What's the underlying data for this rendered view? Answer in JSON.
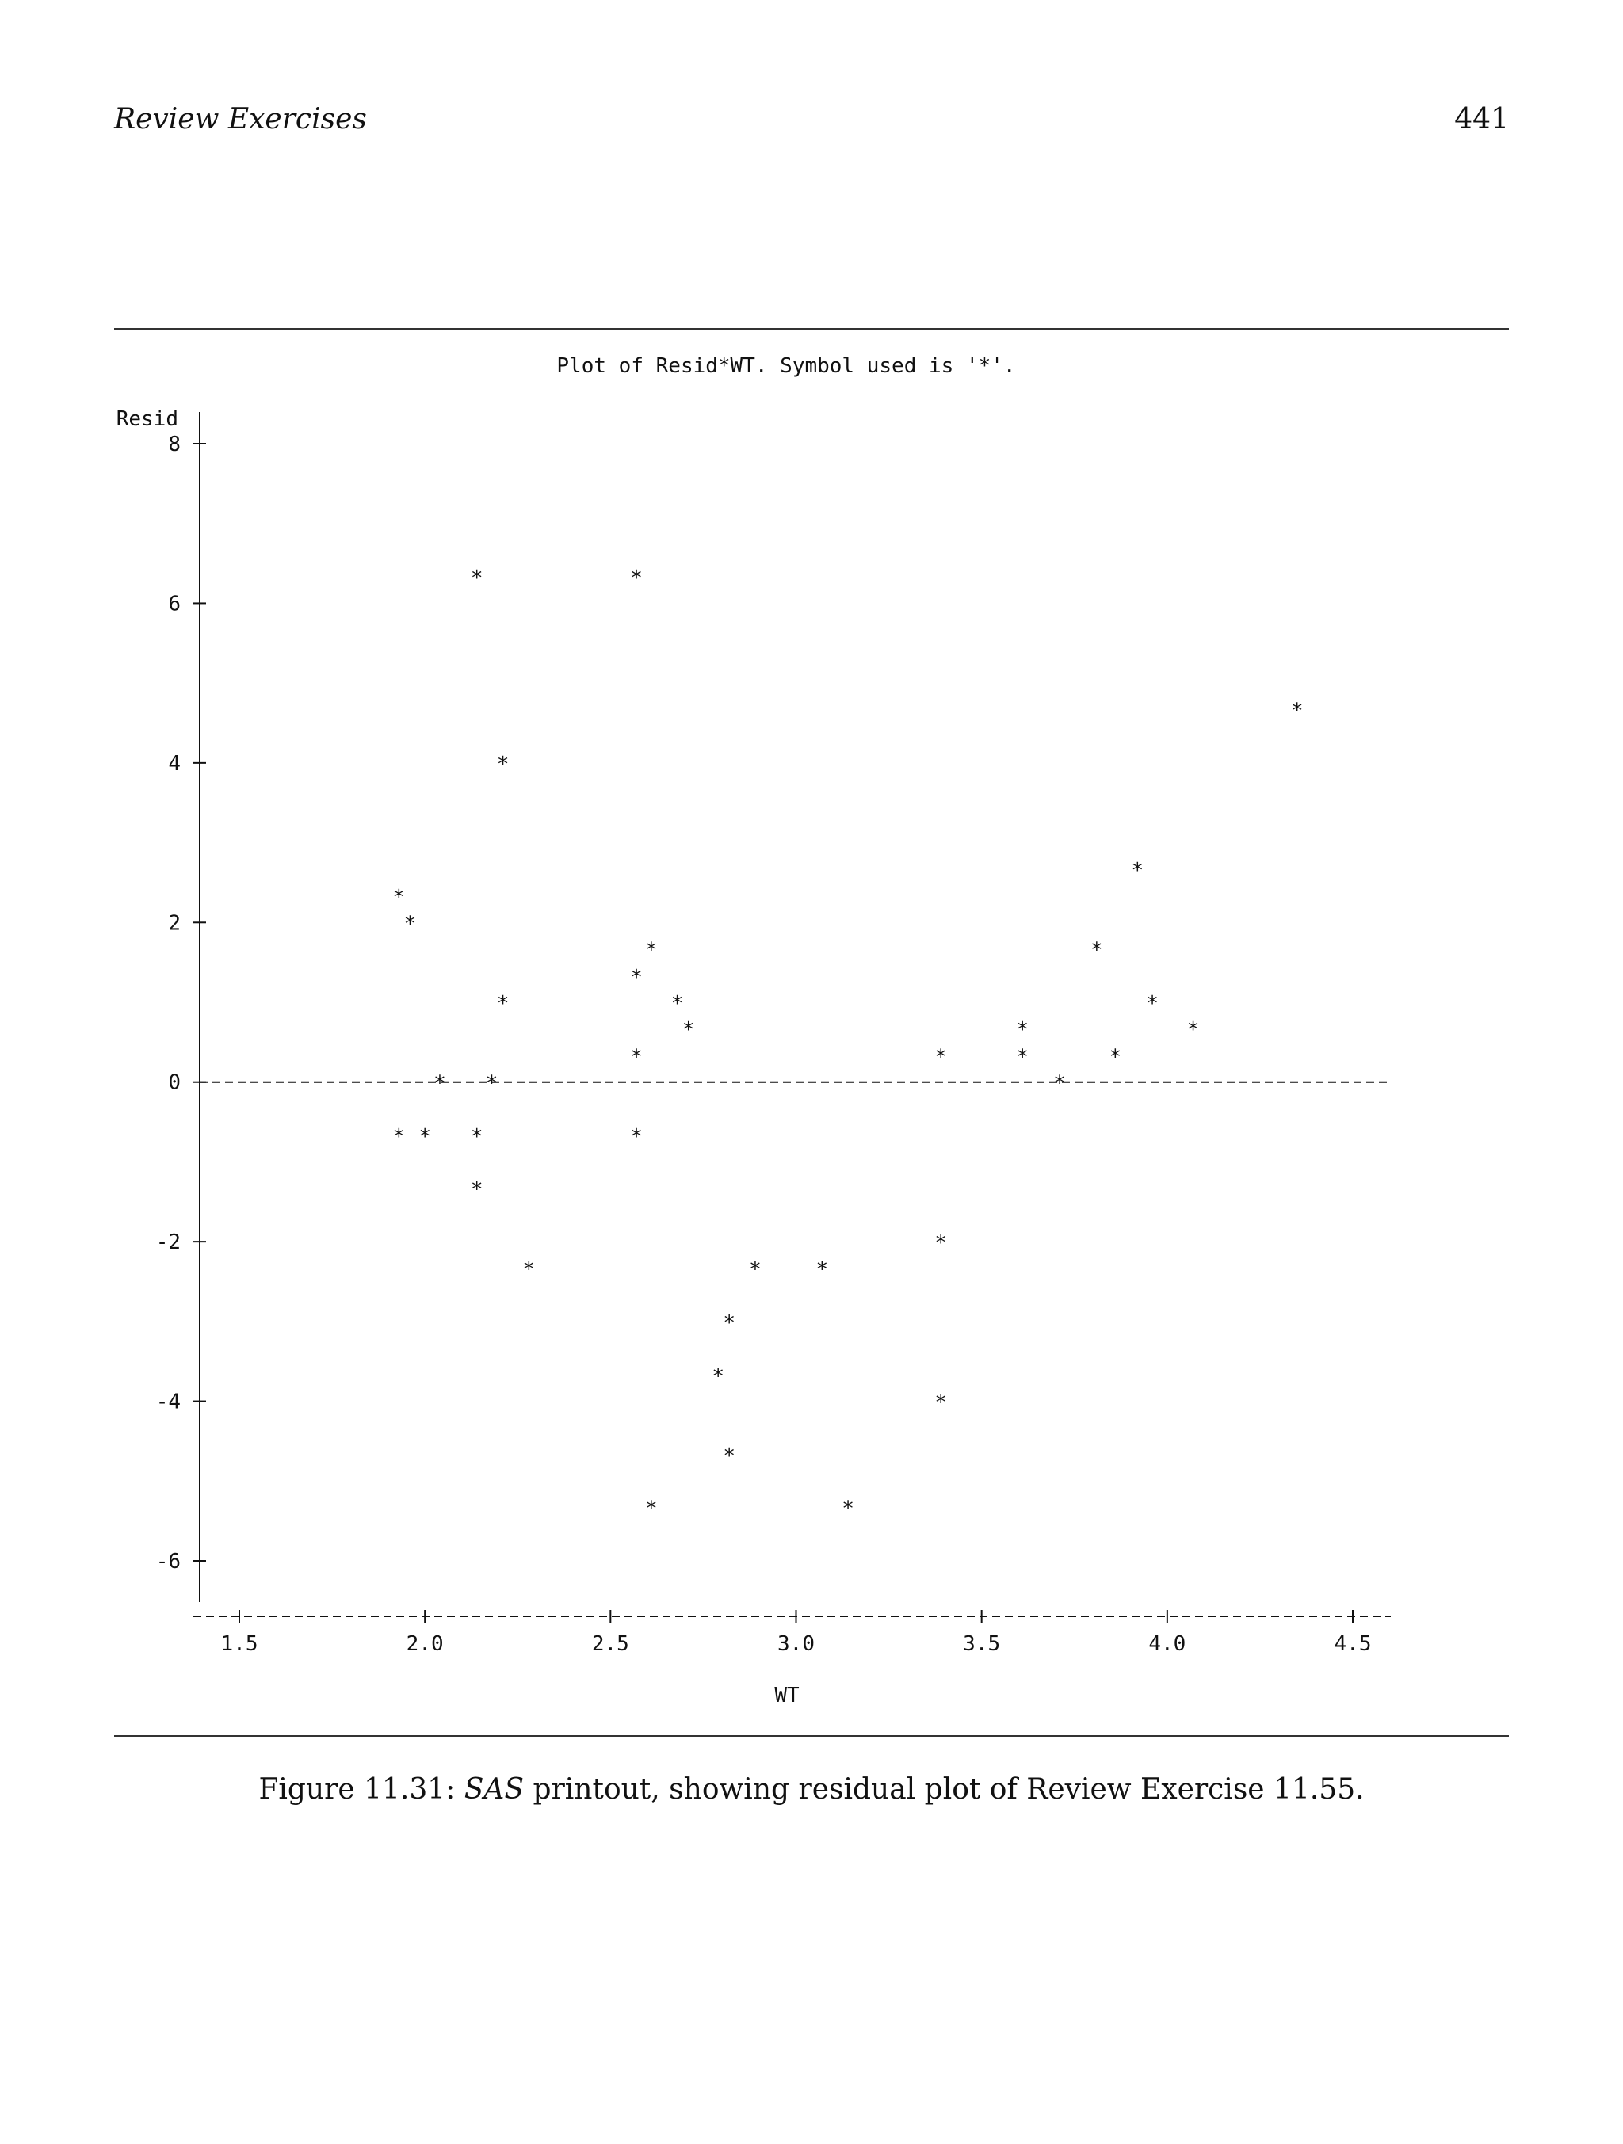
{
  "page": {
    "running_head": "Review Exercises",
    "page_number": "441"
  },
  "caption": {
    "prefix": "Figure 11.31: ",
    "software": "SAS",
    "rest": " printout, showing residual plot of Review Exercise 11.55."
  },
  "chart_data": {
    "type": "scatter",
    "title": "Plot of Resid*WT.  Symbol used is '*'.",
    "xlabel": "WT",
    "ylabel": "Resid",
    "xlim": [
      1.5,
      4.5
    ],
    "ylim": [
      -6,
      8
    ],
    "xticks": [
      1.5,
      2.0,
      2.5,
      3.0,
      3.5,
      4.0,
      4.5
    ],
    "xtick_labels": [
      "1.5",
      "2.0",
      "2.5",
      "3.0",
      "3.5",
      "4.0",
      "4.5"
    ],
    "yticks": [
      8,
      6,
      4,
      2,
      0,
      -2,
      -4,
      -6
    ],
    "ytick_labels": [
      "8",
      "6",
      "4",
      "2",
      "0",
      "-2",
      "-4",
      "-6"
    ],
    "reference_line": 0,
    "symbol": "*",
    "points": [
      {
        "x": 2.14,
        "y": 6.33
      },
      {
        "x": 2.57,
        "y": 6.33
      },
      {
        "x": 4.35,
        "y": 4.67
      },
      {
        "x": 2.21,
        "y": 4.0
      },
      {
        "x": 3.92,
        "y": 2.67
      },
      {
        "x": 1.93,
        "y": 2.33
      },
      {
        "x": 1.96,
        "y": 2.0
      },
      {
        "x": 2.61,
        "y": 1.67
      },
      {
        "x": 3.81,
        "y": 1.67
      },
      {
        "x": 2.57,
        "y": 1.33
      },
      {
        "x": 2.21,
        "y": 1.0
      },
      {
        "x": 2.68,
        "y": 1.0
      },
      {
        "x": 3.96,
        "y": 1.0
      },
      {
        "x": 2.71,
        "y": 0.67
      },
      {
        "x": 3.61,
        "y": 0.67
      },
      {
        "x": 4.07,
        "y": 0.67
      },
      {
        "x": 2.57,
        "y": 0.33
      },
      {
        "x": 3.39,
        "y": 0.33
      },
      {
        "x": 3.61,
        "y": 0.33
      },
      {
        "x": 3.86,
        "y": 0.33
      },
      {
        "x": 2.04,
        "y": 0.0
      },
      {
        "x": 2.18,
        "y": 0.0
      },
      {
        "x": 3.71,
        "y": 0.0
      },
      {
        "x": 1.93,
        "y": -0.67
      },
      {
        "x": 2.0,
        "y": -0.67
      },
      {
        "x": 2.14,
        "y": -0.67
      },
      {
        "x": 2.57,
        "y": -0.67
      },
      {
        "x": 2.14,
        "y": -1.33
      },
      {
        "x": 3.39,
        "y": -2.0
      },
      {
        "x": 2.28,
        "y": -2.33
      },
      {
        "x": 2.89,
        "y": -2.33
      },
      {
        "x": 3.07,
        "y": -2.33
      },
      {
        "x": 2.82,
        "y": -3.0
      },
      {
        "x": 2.79,
        "y": -3.67
      },
      {
        "x": 3.39,
        "y": -4.0
      },
      {
        "x": 2.82,
        "y": -4.67
      },
      {
        "x": 2.61,
        "y": -5.33
      },
      {
        "x": 3.14,
        "y": -5.33
      }
    ]
  }
}
